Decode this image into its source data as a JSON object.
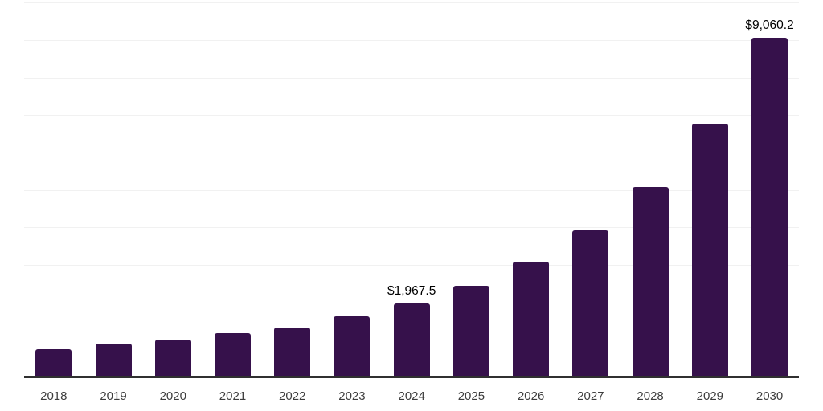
{
  "chart_data": {
    "type": "bar",
    "title": "",
    "xlabel": "",
    "ylabel": "",
    "categories": [
      "2018",
      "2019",
      "2020",
      "2021",
      "2022",
      "2023",
      "2024",
      "2025",
      "2026",
      "2027",
      "2028",
      "2029",
      "2030"
    ],
    "values": [
      760,
      900,
      1010,
      1170,
      1335,
      1630,
      1967.5,
      2440,
      3080,
      3915,
      5080,
      6770,
      9060.2
    ],
    "data_labels": [
      {
        "category": "2024",
        "text": "$1,967.5"
      },
      {
        "category": "2030",
        "text": "$9,060.2"
      }
    ],
    "ylim": [
      0,
      10000
    ],
    "grid": {
      "horizontal": true,
      "interval": 1000,
      "y_tick_labels_visible": false
    },
    "legend": "none"
  },
  "colors": {
    "bar": "#36114B",
    "gridline": "#F1F1F1",
    "axis_line": "#303030",
    "data_label": "#000000",
    "tick_label": "#3D3D3D",
    "background": "#FFFFFF"
  }
}
